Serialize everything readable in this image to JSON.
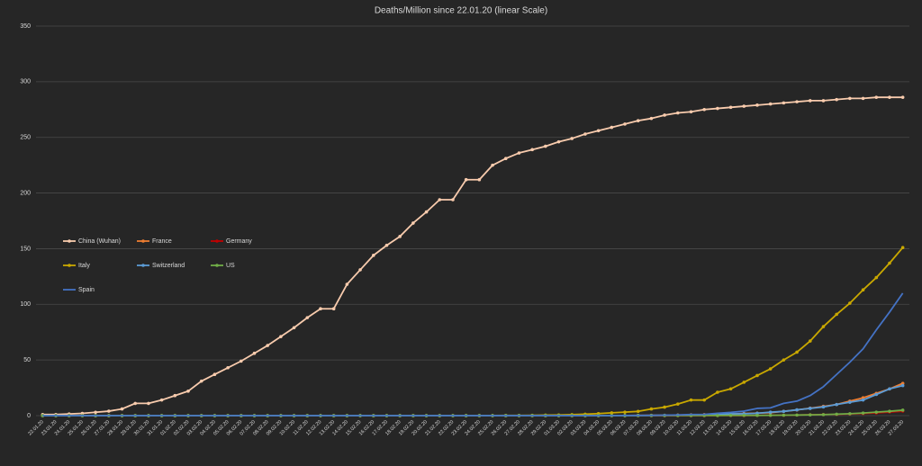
{
  "chart_data": {
    "type": "line",
    "title": "Deaths/Million since 22.01.20 (linear Scale)",
    "categories": [
      "22.01.20",
      "23.01.20",
      "24.01.20",
      "25.01.20",
      "26.01.20",
      "27.01.20",
      "28.01.20",
      "29.01.20",
      "30.01.20",
      "31.01.20",
      "01.02.20",
      "02.02.20",
      "03.02.20",
      "04.02.20",
      "05.02.20",
      "06.02.20",
      "07.02.20",
      "08.02.20",
      "09.02.20",
      "10.02.20",
      "11.02.20",
      "12.02.20",
      "13.02.20",
      "14.02.20",
      "15.02.20",
      "16.02.20",
      "17.02.20",
      "18.02.20",
      "19.02.20",
      "20.02.20",
      "21.02.20",
      "22.02.20",
      "23.02.20",
      "24.02.20",
      "25.02.20",
      "26.02.20",
      "27.02.20",
      "28.02.20",
      "29.02.20",
      "01.03.20",
      "02.03.20",
      "03.03.20",
      "04.03.20",
      "05.03.20",
      "06.03.20",
      "07.03.20",
      "08.03.20",
      "09.03.20",
      "10.03.20",
      "11.03.20",
      "12.03.20",
      "13.03.20",
      "14.03.20",
      "15.03.20",
      "16.03.20",
      "17.03.20",
      "18.03.20",
      "19.03.20",
      "20.03.20",
      "21.03.20",
      "22.03.20",
      "23.03.20",
      "24.03.20",
      "25.03.20",
      "26.03.20",
      "27.03.20"
    ],
    "ylim": [
      0,
      350
    ],
    "yticks": [
      0,
      50,
      100,
      150,
      200,
      250,
      300,
      350
    ],
    "grid": true,
    "legend": "left",
    "series": [
      {
        "name": "China (Wuhan)",
        "color": "#f8cbad",
        "markers": true,
        "values": [
          1,
          1,
          1.5,
          2,
          3,
          4,
          6,
          11,
          11,
          14,
          18,
          22,
          31,
          37,
          43,
          49,
          56,
          63,
          71,
          79,
          88,
          96,
          96,
          118,
          131,
          144,
          153,
          161,
          173,
          183,
          194,
          194,
          212,
          212,
          225,
          231,
          236,
          239,
          242,
          246,
          249,
          253,
          256,
          259,
          262,
          265,
          267,
          270,
          272,
          273,
          275,
          276,
          277,
          278,
          279,
          280,
          281,
          282,
          283,
          283,
          284,
          285,
          285,
          286,
          286,
          286
        ]
      },
      {
        "name": "France",
        "color": "#ed7d31",
        "markers": true,
        "values": [
          0,
          0,
          0,
          0,
          0,
          0,
          0,
          0,
          0,
          0,
          0,
          0,
          0,
          0,
          0,
          0,
          0,
          0,
          0,
          0,
          0,
          0,
          0,
          0,
          0,
          0,
          0,
          0,
          0,
          0,
          0,
          0,
          0,
          0,
          0,
          0,
          0,
          0,
          0,
          0,
          0,
          0.05,
          0.05,
          0.1,
          0.1,
          0.2,
          0.3,
          0.3,
          0.5,
          0.7,
          0.9,
          1.2,
          1.4,
          1.9,
          2.2,
          2.6,
          3.9,
          5.1,
          6.7,
          8.3,
          10,
          13,
          16,
          20,
          24,
          29
        ]
      },
      {
        "name": "Germany",
        "color": "#c00000",
        "markers": true,
        "values": [
          0,
          0,
          0,
          0,
          0,
          0,
          0,
          0,
          0,
          0,
          0,
          0,
          0,
          0,
          0,
          0,
          0,
          0,
          0,
          0,
          0,
          0,
          0,
          0,
          0,
          0,
          0,
          0,
          0,
          0,
          0,
          0,
          0,
          0,
          0,
          0,
          0,
          0,
          0,
          0,
          0,
          0,
          0,
          0,
          0,
          0,
          0,
          0.01,
          0.02,
          0.04,
          0.04,
          0.1,
          0.1,
          0.1,
          0.2,
          0.3,
          0.4,
          0.5,
          0.8,
          1.0,
          1.1,
          1.5,
          1.9,
          2.4,
          3.2,
          4
        ]
      },
      {
        "name": "Italy",
        "color": "#c9a800",
        "markers": true,
        "values": [
          0,
          0,
          0,
          0,
          0,
          0,
          0,
          0,
          0,
          0,
          0,
          0,
          0,
          0,
          0,
          0,
          0,
          0,
          0,
          0,
          0,
          0,
          0,
          0,
          0,
          0,
          0,
          0,
          0,
          0,
          0,
          0,
          0.05,
          0.1,
          0.1,
          0.2,
          0.2,
          0.3,
          0.5,
          0.6,
          0.9,
          1.3,
          1.8,
          2.5,
          3.1,
          3.8,
          6,
          7.6,
          10.4,
          14,
          14,
          21,
          24,
          30,
          36,
          42,
          50,
          57,
          67,
          80,
          91,
          101,
          113,
          124,
          137,
          151
        ]
      },
      {
        "name": "Switzerland",
        "color": "#5b9bd5",
        "markers": true,
        "values": [
          0,
          0,
          0,
          0,
          0,
          0,
          0,
          0,
          0,
          0,
          0,
          0,
          0,
          0,
          0,
          0,
          0,
          0,
          0,
          0,
          0,
          0,
          0,
          0,
          0,
          0,
          0,
          0,
          0,
          0,
          0,
          0,
          0,
          0,
          0,
          0,
          0,
          0,
          0,
          0,
          0,
          0,
          0,
          0,
          0.1,
          0.2,
          0.2,
          0.3,
          0.4,
          0.5,
          0.6,
          1.3,
          1.6,
          1.6,
          2.1,
          3.1,
          3.8,
          5.2,
          6.5,
          7.8,
          10,
          12,
          14,
          19,
          24,
          27
        ]
      },
      {
        "name": "US",
        "color": "#70ad47",
        "markers": true,
        "values": [
          0,
          0,
          0,
          0,
          0,
          0,
          0,
          0,
          0,
          0,
          0,
          0,
          0,
          0,
          0,
          0,
          0,
          0,
          0,
          0,
          0,
          0,
          0,
          0,
          0,
          0,
          0,
          0,
          0,
          0,
          0,
          0,
          0,
          0,
          0,
          0,
          0,
          0,
          0,
          0.01,
          0.02,
          0.02,
          0.03,
          0.03,
          0.04,
          0.05,
          0.07,
          0.07,
          0.09,
          0.1,
          0.1,
          0.1,
          0.2,
          0.2,
          0.2,
          0.3,
          0.4,
          0.5,
          0.7,
          0.9,
          1.3,
          1.7,
          2.3,
          3.1,
          3.9,
          4.9
        ]
      },
      {
        "name": "Spain",
        "color": "#4472c4",
        "markers": false,
        "values": [
          0,
          0,
          0,
          0,
          0,
          0,
          0,
          0,
          0,
          0,
          0,
          0,
          0,
          0,
          0,
          0,
          0,
          0,
          0,
          0,
          0,
          0,
          0,
          0,
          0,
          0,
          0,
          0,
          0,
          0,
          0,
          0,
          0,
          0,
          0,
          0,
          0,
          0,
          0,
          0,
          0,
          0,
          0,
          0,
          0.1,
          0.1,
          0.2,
          0.4,
          0.6,
          1,
          1.1,
          2.1,
          2.9,
          4,
          6.5,
          7,
          11,
          13,
          18,
          26,
          37,
          48,
          60,
          77,
          93,
          110
        ]
      }
    ]
  }
}
